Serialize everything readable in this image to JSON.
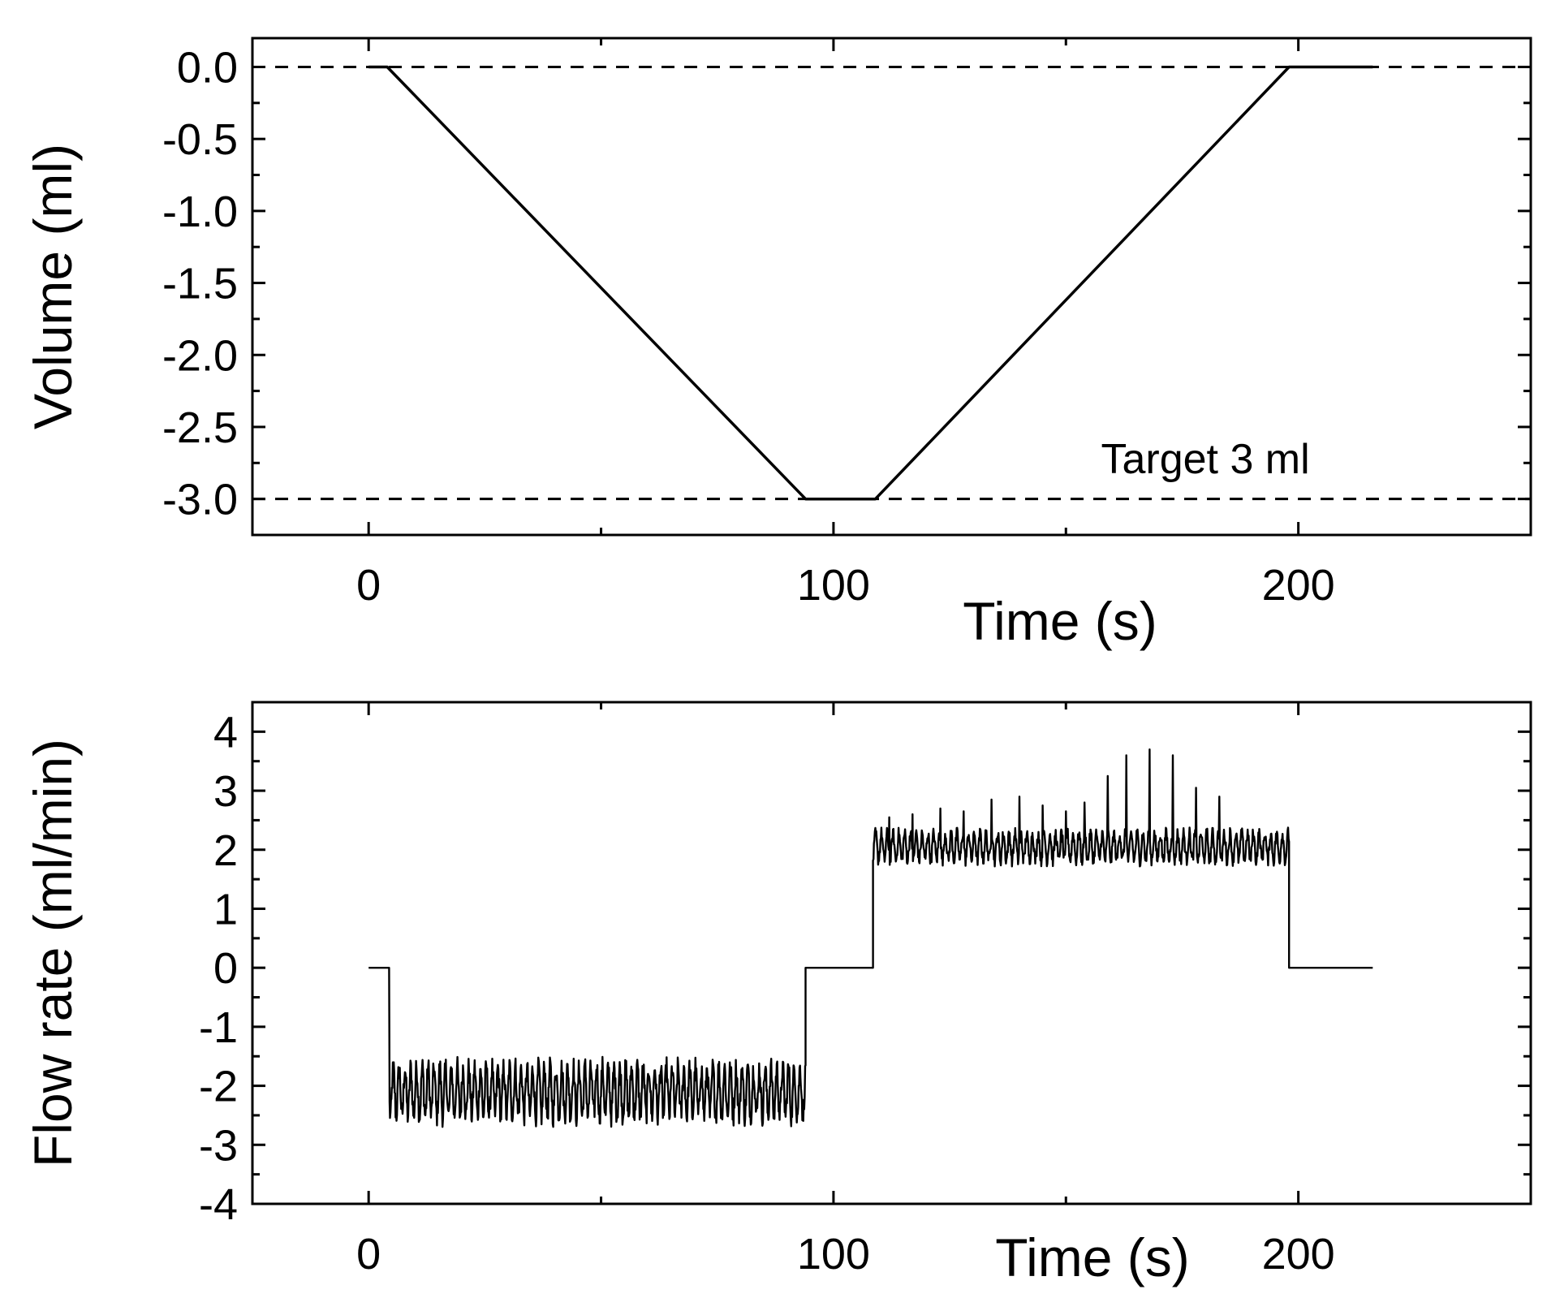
{
  "chart_data": [
    {
      "type": "line",
      "id": "volume",
      "title": "",
      "xlabel": "Time (s)",
      "ylabel": "Volume (ml)",
      "xlim": [
        -25,
        250
      ],
      "ylim": [
        -3.25,
        0.2
      ],
      "xticks": [
        0,
        100,
        200
      ],
      "xtick_labels": [
        "0",
        "100",
        "200"
      ],
      "yticks": [
        0.0,
        -0.5,
        -1.0,
        -1.5,
        -2.0,
        -2.5,
        -3.0
      ],
      "ytick_labels": [
        "0.0",
        "-0.5",
        "-1.0",
        "-1.5",
        "-2.0",
        "-2.5",
        "-3.0"
      ],
      "reference_lines": [
        {
          "y": 0.0,
          "style": "dashed"
        },
        {
          "y": -3.0,
          "style": "dashed"
        }
      ],
      "annotations": [
        {
          "text": "Target 3 ml",
          "x": 180,
          "y": -2.72
        }
      ],
      "series": [
        {
          "name": "Volume",
          "x": [
            0,
            4,
            94,
            109,
            198,
            216
          ],
          "y": [
            0,
            0,
            -3.0,
            -3.0,
            0,
            0
          ]
        }
      ],
      "grid": false,
      "legend": "none"
    },
    {
      "type": "line",
      "id": "flow",
      "title": "",
      "xlabel": "Time (s)",
      "ylabel": "Flow rate (ml/min)",
      "xlim": [
        -25,
        250
      ],
      "ylim": [
        -4,
        4.5
      ],
      "xticks": [
        0,
        100,
        200
      ],
      "xtick_labels": [
        "0",
        "100",
        "200"
      ],
      "yticks": [
        4,
        3,
        2,
        1,
        0,
        -1,
        -2,
        -3,
        -4
      ],
      "ytick_labels": [
        "4",
        "3",
        "2",
        "1",
        "0",
        "-1",
        "-2",
        "-3",
        "-4"
      ],
      "series": [
        {
          "name": "Flow rate",
          "description": "noisy piecewise signal: ~0 until 4.5 s, ~-2 (noisy, -1.4 to -3.1) until 94 s, 0 until 108.5 s, ~+2 (noisy with spikes up to 3.7) until 198 s, 0 until 216 s",
          "segments": [
            {
              "x_start": 0,
              "x_end": 4.5,
              "mean": 0,
              "noise": 0
            },
            {
              "x_start": 4.5,
              "x_end": 94,
              "mean": -2.1,
              "noise": 0.45,
              "min": -3.1,
              "max": -1.35
            },
            {
              "x_start": 94,
              "x_end": 108.5,
              "mean": 0,
              "noise": 0
            },
            {
              "x_start": 108.5,
              "x_end": 198,
              "mean": 2.05,
              "noise": 0.25,
              "min": 1.4,
              "max": 3.7
            },
            {
              "x_start": 198,
              "x_end": 216,
              "mean": 0,
              "noise": 0
            }
          ],
          "spikes": [
            {
              "x": 112,
              "y": 2.55
            },
            {
              "x": 117,
              "y": 2.6
            },
            {
              "x": 123,
              "y": 2.7
            },
            {
              "x": 128,
              "y": 2.65
            },
            {
              "x": 134,
              "y": 2.85
            },
            {
              "x": 140,
              "y": 2.9
            },
            {
              "x": 145,
              "y": 2.75
            },
            {
              "x": 150,
              "y": 2.65
            },
            {
              "x": 154,
              "y": 2.8
            },
            {
              "x": 159,
              "y": 3.25
            },
            {
              "x": 163,
              "y": 3.6
            },
            {
              "x": 168,
              "y": 3.7
            },
            {
              "x": 173,
              "y": 3.6
            },
            {
              "x": 178,
              "y": 3.05
            },
            {
              "x": 183,
              "y": 2.9
            }
          ]
        }
      ],
      "grid": false,
      "legend": "none"
    }
  ]
}
